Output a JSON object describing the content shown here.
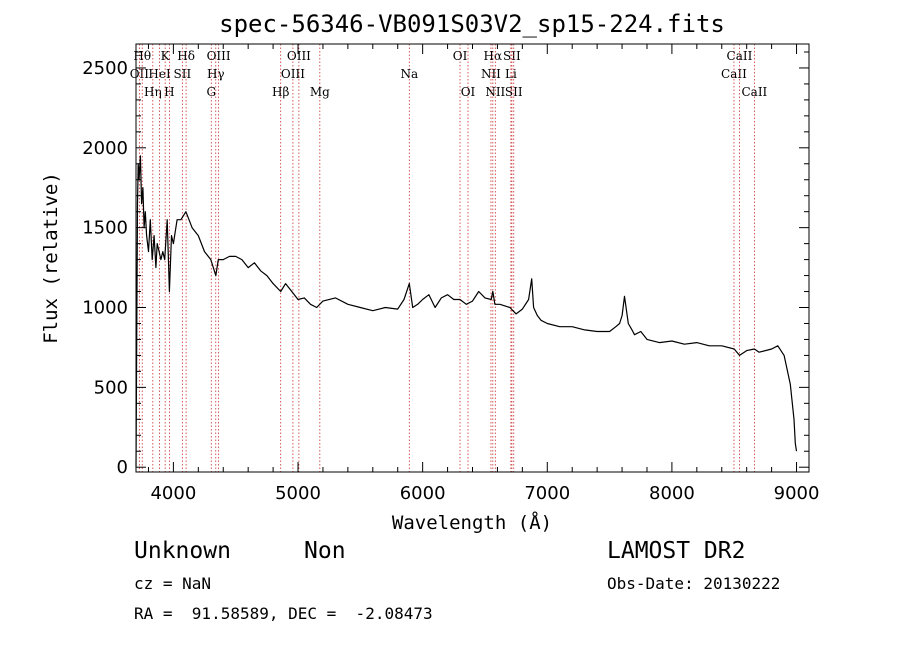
{
  "chart_data": {
    "type": "line",
    "title": "spec-56346-VB091S03V2_sp15-224.fits",
    "xlabel": "Wavelength (Å)",
    "ylabel": "Flux (relative)",
    "xlim": [
      3700,
      9100
    ],
    "ylim": [
      -30,
      2650
    ],
    "x_ticks": [
      4000,
      5000,
      6000,
      7000,
      8000,
      9000
    ],
    "y_ticks": [
      0,
      500,
      1000,
      1500,
      2000,
      2500
    ],
    "grid": false,
    "series": [
      {
        "x": [
          3700,
          3712,
          3718,
          3725,
          3735,
          3745,
          3755,
          3765,
          3775,
          3785,
          3800,
          3815,
          3830,
          3845,
          3860,
          3870,
          3885,
          3900,
          3915,
          3930,
          3950,
          3968,
          3985,
          4000,
          4030,
          4060,
          4100,
          4150,
          4200,
          4250,
          4300,
          4340,
          4360,
          4400,
          4450,
          4500,
          4550,
          4600,
          4650,
          4700,
          4750,
          4800,
          4861,
          4900,
          4950,
          5000,
          5050,
          5100,
          5150,
          5200,
          5300,
          5400,
          5500,
          5600,
          5700,
          5800,
          5850,
          5893,
          5920,
          5960,
          6000,
          6050,
          6100,
          6150,
          6200,
          6250,
          6300,
          6350,
          6400,
          6450,
          6500,
          6550,
          6563,
          6580,
          6620,
          6700,
          6750,
          6800,
          6850,
          6875,
          6890,
          6920,
          6950,
          7000,
          7100,
          7200,
          7300,
          7400,
          7500,
          7550,
          7580,
          7600,
          7620,
          7650,
          7680,
          7700,
          7750,
          7800,
          7900,
          8000,
          8100,
          8200,
          8300,
          8400,
          8500,
          8542,
          8600,
          8662,
          8700,
          8800,
          8850,
          8900,
          8950,
          8980,
          8990,
          9000
        ],
        "y": [
          0,
          1650,
          1900,
          1800,
          1950,
          1650,
          1750,
          1500,
          1600,
          1450,
          1350,
          1550,
          1300,
          1450,
          1250,
          1400,
          1350,
          1300,
          1350,
          1300,
          1550,
          1100,
          1450,
          1400,
          1550,
          1550,
          1600,
          1500,
          1450,
          1350,
          1300,
          1200,
          1300,
          1300,
          1320,
          1320,
          1300,
          1250,
          1280,
          1230,
          1200,
          1150,
          1100,
          1150,
          1100,
          1050,
          1060,
          1020,
          1000,
          1040,
          1060,
          1020,
          1000,
          980,
          1000,
          990,
          1050,
          1150,
          1000,
          1020,
          1050,
          1080,
          1000,
          1060,
          1080,
          1050,
          1050,
          1020,
          1040,
          1100,
          1060,
          1050,
          1100,
          1020,
          1020,
          1000,
          960,
          990,
          1050,
          1180,
          1000,
          950,
          920,
          900,
          880,
          880,
          860,
          850,
          850,
          880,
          900,
          950,
          1070,
          900,
          860,
          830,
          850,
          800,
          780,
          790,
          770,
          780,
          760,
          760,
          740,
          700,
          730,
          740,
          720,
          740,
          760,
          700,
          520,
          300,
          150,
          100
        ]
      }
    ],
    "line_markers": [
      {
        "wave": 3727,
        "row": 1,
        "label": "OII"
      },
      {
        "wave": 3750,
        "row": 0,
        "label": "Hθ"
      },
      {
        "wave": 3835,
        "row": 2,
        "label": "Hη"
      },
      {
        "wave": 3889,
        "row": 1,
        "label": "HeI"
      },
      {
        "wave": 3934,
        "row": 0,
        "label": "K"
      },
      {
        "wave": 3968,
        "row": 2,
        "label": "H"
      },
      {
        "wave": 4072,
        "row": 1,
        "label": "SII"
      },
      {
        "wave": 4102,
        "row": 0,
        "label": "Hδ"
      },
      {
        "wave": 4304,
        "row": 2,
        "label": "G"
      },
      {
        "wave": 4340,
        "row": 1,
        "label": "Hγ"
      },
      {
        "wave": 4363,
        "row": 0,
        "label": "OIII"
      },
      {
        "wave": 4861,
        "row": 2,
        "label": "Hβ"
      },
      {
        "wave": 4959,
        "row": 1,
        "label": "OIII"
      },
      {
        "wave": 5007,
        "row": 0,
        "label": "OIII"
      },
      {
        "wave": 5175,
        "row": 2,
        "label": "Mg"
      },
      {
        "wave": 5893,
        "row": 1,
        "label": "Na"
      },
      {
        "wave": 6300,
        "row": 0,
        "label": "OI"
      },
      {
        "wave": 6364,
        "row": 2,
        "label": "OI"
      },
      {
        "wave": 6548,
        "row": 1,
        "label": "NII"
      },
      {
        "wave": 6563,
        "row": 0,
        "label": "Hα"
      },
      {
        "wave": 6583,
        "row": 2,
        "label": "NII"
      },
      {
        "wave": 6708,
        "row": 1,
        "label": "Li"
      },
      {
        "wave": 6716,
        "row": 0,
        "label": "SII"
      },
      {
        "wave": 6731,
        "row": 2,
        "label": "SII"
      },
      {
        "wave": 8498,
        "row": 1,
        "label": "CaII"
      },
      {
        "wave": 8542,
        "row": 0,
        "label": "CaII"
      },
      {
        "wave": 8662,
        "row": 2,
        "label": "CaII"
      }
    ]
  },
  "info": {
    "class_label": "Unknown",
    "subclass_label": "Non",
    "redshift_text": "cz = NaN",
    "coords_text": "RA =  91.58589, DEC =  -2.08473",
    "survey_label": "LAMOST DR2",
    "obs_date_text": "Obs-Date: 20130222"
  }
}
